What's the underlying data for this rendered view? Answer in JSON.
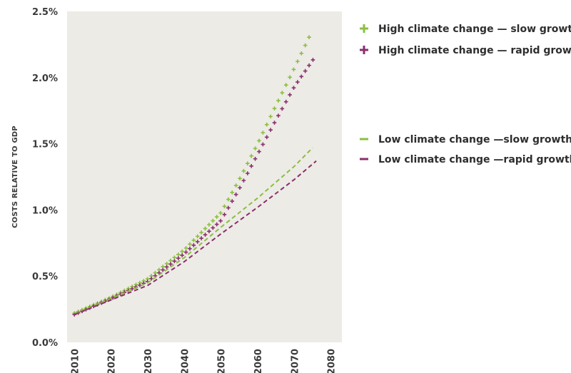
{
  "chart_data": {
    "type": "line",
    "title": "",
    "xlabel": "",
    "ylabel": "COSTS RELATIVE TO GDP",
    "xlim": [
      2008,
      2083
    ],
    "ylim": [
      0.0,
      2.5
    ],
    "x_ticks": [
      "2010",
      "2020",
      "2030",
      "2040",
      "2050",
      "2060",
      "2070",
      "2080"
    ],
    "y_ticks": [
      "0.0%",
      "0.5%",
      "1.0%",
      "1.5%",
      "2.0%",
      "2.5%"
    ],
    "grid": false,
    "background": "#edebe6",
    "legend_position": "right",
    "series": [
      {
        "name": "High climate change — slow growth",
        "marker": "plus",
        "color": "#8bbf3f",
        "points": [
          [
            2010,
            0.22
          ],
          [
            2020,
            0.34
          ],
          [
            2030,
            0.48
          ],
          [
            2040,
            0.7
          ],
          [
            2050,
            0.98
          ],
          [
            2055,
            1.23
          ],
          [
            2060,
            1.5
          ],
          [
            2065,
            1.79
          ],
          [
            2070,
            2.07
          ],
          [
            2075,
            2.36
          ]
        ]
      },
      {
        "name": "High climate change — rapid growth",
        "marker": "plus",
        "color": "#8a2f6e",
        "points": [
          [
            2010,
            0.21
          ],
          [
            2020,
            0.33
          ],
          [
            2030,
            0.46
          ],
          [
            2040,
            0.67
          ],
          [
            2050,
            0.92
          ],
          [
            2055,
            1.16
          ],
          [
            2060,
            1.42
          ],
          [
            2065,
            1.68
          ],
          [
            2070,
            1.93
          ],
          [
            2076,
            2.17
          ]
        ]
      },
      {
        "name": "Low climate change —slow growth",
        "marker": "dash",
        "color": "#8bbf3f",
        "points": [
          [
            2010,
            0.22
          ],
          [
            2020,
            0.33
          ],
          [
            2030,
            0.45
          ],
          [
            2040,
            0.64
          ],
          [
            2050,
            0.87
          ],
          [
            2060,
            1.09
          ],
          [
            2070,
            1.33
          ],
          [
            2075,
            1.47
          ]
        ]
      },
      {
        "name": "Low climate change —rapid growth",
        "marker": "dash",
        "color": "#8a2f6e",
        "points": [
          [
            2010,
            0.21
          ],
          [
            2020,
            0.32
          ],
          [
            2030,
            0.43
          ],
          [
            2040,
            0.61
          ],
          [
            2050,
            0.82
          ],
          [
            2060,
            1.02
          ],
          [
            2070,
            1.23
          ],
          [
            2076,
            1.37
          ]
        ]
      }
    ]
  }
}
